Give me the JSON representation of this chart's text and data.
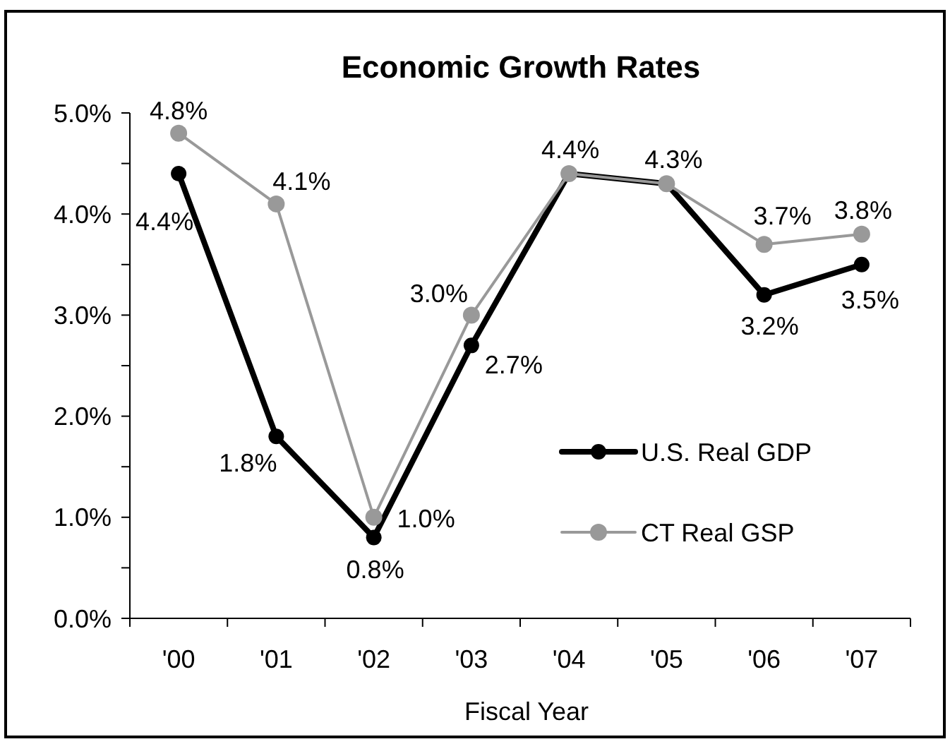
{
  "chart_data": {
    "type": "line",
    "title": "Economic Growth Rates",
    "xlabel": "Fiscal Year",
    "categories": [
      "'00",
      "'01",
      "'02",
      "'03",
      "'04",
      "'05",
      "'06",
      "'07"
    ],
    "series": [
      {
        "name": "U.S. Real GDP",
        "color": "#000000",
        "values": [
          4.4,
          1.8,
          0.8,
          2.7,
          4.4,
          4.3,
          3.2,
          3.5
        ],
        "value_labels": [
          "4.4%",
          "1.8%",
          "0.8%",
          "2.7%",
          null,
          null,
          "3.2%",
          "3.5%"
        ]
      },
      {
        "name": "CT Real GSP",
        "color": "#999999",
        "values": [
          4.8,
          4.1,
          1.0,
          3.0,
          4.4,
          4.3,
          3.7,
          3.8
        ],
        "value_labels": [
          "4.8%",
          "4.1%",
          "1.0%",
          "3.0%",
          "4.4%",
          "4.3%",
          "3.7%",
          "3.8%"
        ]
      }
    ],
    "ylim": [
      0,
      5
    ],
    "yticks": [
      {
        "value": 0,
        "label": "0.0%"
      },
      {
        "value": 0.5,
        "label": null
      },
      {
        "value": 1,
        "label": "1.0%"
      },
      {
        "value": 1.5,
        "label": null
      },
      {
        "value": 2,
        "label": "2.0%"
      },
      {
        "value": 2.5,
        "label": null
      },
      {
        "value": 3,
        "label": "3.0%"
      },
      {
        "value": 3.5,
        "label": null
      },
      {
        "value": 4,
        "label": "4.0%"
      },
      {
        "value": 4.5,
        "label": null
      },
      {
        "value": 5,
        "label": "5.0%"
      }
    ],
    "grid": false,
    "legend": "right",
    "marker": "circle",
    "line_style": "solid"
  }
}
